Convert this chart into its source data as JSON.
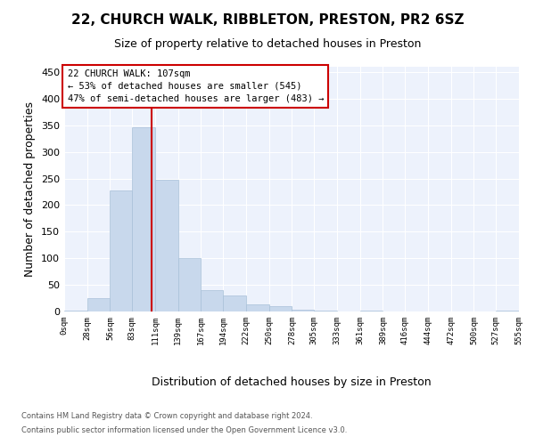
{
  "title1": "22, CHURCH WALK, RIBBLETON, PRESTON, PR2 6SZ",
  "title2": "Size of property relative to detached houses in Preston",
  "xlabel": "Distribution of detached houses by size in Preston",
  "ylabel": "Number of detached properties",
  "bin_edges": [
    0,
    28,
    56,
    83,
    111,
    139,
    167,
    194,
    222,
    250,
    278,
    305,
    333,
    361,
    389,
    416,
    444,
    472,
    500,
    527,
    555
  ],
  "bar_heights": [
    2,
    25,
    228,
    347,
    247,
    100,
    40,
    30,
    13,
    10,
    4,
    1,
    0,
    1,
    0,
    0,
    0,
    0,
    0,
    2
  ],
  "bar_color": "#c8d8ec",
  "bar_edgecolor": "#a8c0d8",
  "property_size": 107,
  "red_line_color": "#cc0000",
  "annotation_line1": "22 CHURCH WALK: 107sqm",
  "annotation_line2": "← 53% of detached houses are smaller (545)",
  "annotation_line3": "47% of semi-detached houses are larger (483) →",
  "annotation_box_facecolor": "white",
  "annotation_box_edgecolor": "#cc0000",
  "footer1": "Contains HM Land Registry data © Crown copyright and database right 2024.",
  "footer2": "Contains public sector information licensed under the Open Government Licence v3.0.",
  "plot_bg_color": "#edf2fc",
  "ylim_max": 460,
  "yticks": [
    0,
    50,
    100,
    150,
    200,
    250,
    300,
    350,
    400,
    450
  ],
  "tick_labels": [
    "0sqm",
    "28sqm",
    "56sqm",
    "83sqm",
    "111sqm",
    "139sqm",
    "167sqm",
    "194sqm",
    "222sqm",
    "250sqm",
    "278sqm",
    "305sqm",
    "333sqm",
    "361sqm",
    "389sqm",
    "416sqm",
    "444sqm",
    "472sqm",
    "500sqm",
    "527sqm",
    "555sqm"
  ],
  "title1_fontsize": 11,
  "title2_fontsize": 9,
  "ylabel_fontsize": 9,
  "xlabel_fontsize": 9,
  "ytick_fontsize": 8,
  "xtick_fontsize": 6.5,
  "annotation_fontsize": 7.5,
  "footer_fontsize": 6
}
